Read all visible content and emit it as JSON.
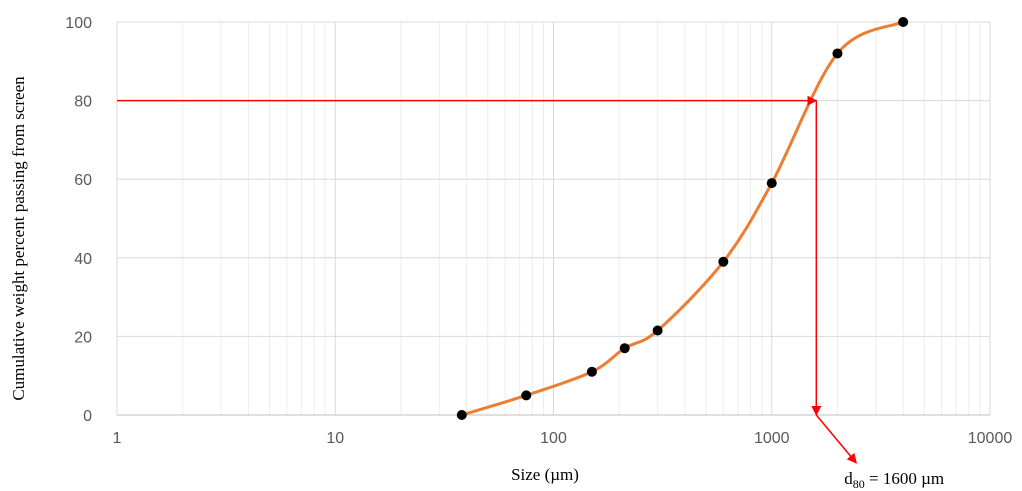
{
  "chart_data": {
    "type": "line",
    "x_scale": "log",
    "xlabel": "Size (µm)",
    "ylabel": "Cumulative weight percent passing from screen",
    "xlim": [
      1,
      10000
    ],
    "ylim": [
      0,
      100
    ],
    "grid": true,
    "x_ticks": [
      "1",
      "10",
      "100",
      "1000",
      "10000"
    ],
    "y_ticks": [
      "0",
      "20",
      "40",
      "60",
      "80",
      "100"
    ],
    "series": [
      {
        "x": [
          38,
          75,
          150,
          212,
          300,
          600,
          1000,
          2000,
          4000
        ],
        "y": [
          0,
          5,
          11,
          17,
          21.5,
          39,
          59,
          92,
          100
        ]
      }
    ],
    "annotation": {
      "target_percent": 80,
      "d80_value": 1600,
      "prefix": "d",
      "subscript": "80",
      "text": " = 1600 µm"
    },
    "colors": {
      "line": "#ED7D31",
      "marker": "#000000",
      "arrow": "#FF0000",
      "grid_major": "#D9D9D9",
      "grid_minor": "#EDEDED"
    }
  }
}
